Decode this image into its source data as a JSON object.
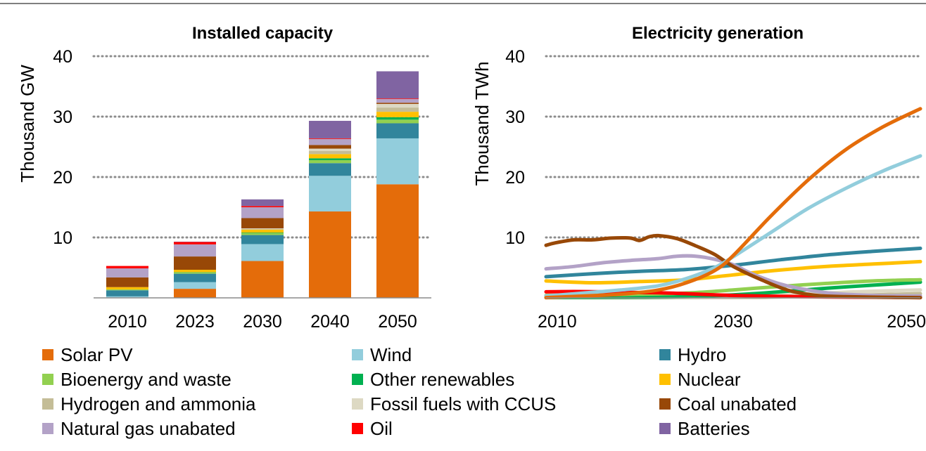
{
  "chart_data": [
    {
      "type": "bar",
      "stacked": true,
      "title": "Installed capacity",
      "ylabel": "Thousand GW",
      "xlabel": "",
      "ylim": [
        0,
        40
      ],
      "yticks": [
        10,
        20,
        30,
        40
      ],
      "grid": "horizontal dotted",
      "categories": [
        "2010",
        "2023",
        "2030",
        "2040",
        "2050"
      ],
      "series": [
        {
          "name": "Solar PV",
          "values": [
            0.05,
            1.5,
            6.1,
            14.3,
            18.8
          ]
        },
        {
          "name": "Wind",
          "values": [
            0.2,
            1.1,
            2.8,
            5.9,
            7.6
          ]
        },
        {
          "name": "Hydro",
          "values": [
            1.0,
            1.4,
            1.5,
            2.1,
            2.5
          ]
        },
        {
          "name": "Bioenergy and waste",
          "values": [
            0.1,
            0.2,
            0.3,
            0.5,
            0.6
          ]
        },
        {
          "name": "Other renewables",
          "values": [
            0.03,
            0.05,
            0.1,
            0.3,
            0.4
          ]
        },
        {
          "name": "Nuclear",
          "values": [
            0.4,
            0.4,
            0.5,
            0.7,
            0.9
          ]
        },
        {
          "name": "Hydrogen and ammonia",
          "values": [
            0.0,
            0.0,
            0.1,
            0.5,
            0.7
          ]
        },
        {
          "name": "Fossil fuels with CCUS",
          "values": [
            0.0,
            0.0,
            0.1,
            0.4,
            0.6
          ]
        },
        {
          "name": "Coal unabated",
          "values": [
            1.6,
            2.2,
            1.7,
            0.6,
            0.2
          ]
        },
        {
          "name": "Natural gas unabated",
          "values": [
            1.5,
            2.0,
            1.8,
            1.0,
            0.6
          ]
        },
        {
          "name": "Oil",
          "values": [
            0.4,
            0.4,
            0.2,
            0.1,
            0.1
          ]
        },
        {
          "name": "Batteries",
          "values": [
            0.0,
            0.05,
            1.1,
            2.9,
            4.5
          ]
        }
      ]
    },
    {
      "type": "line",
      "title": "Electricity generation",
      "ylabel": "Thousand TWh",
      "xlabel": "",
      "xlim": [
        2010,
        2050
      ],
      "xticks": [
        2010,
        2030,
        2050
      ],
      "ylim": [
        0,
        40
      ],
      "yticks": [
        10,
        20,
        30,
        40
      ],
      "grid": "horizontal dotted",
      "series": [
        {
          "name": "Solar PV",
          "x": [
            2010,
            2014,
            2018,
            2022,
            2025,
            2028,
            2030,
            2034,
            2038,
            2042,
            2046,
            2050
          ],
          "y": [
            0.05,
            0.3,
            0.6,
            1.3,
            2.5,
            4.5,
            7.0,
            13.5,
            19.5,
            24.5,
            28.3,
            31.3
          ]
        },
        {
          "name": "Wind",
          "x": [
            2010,
            2014,
            2018,
            2022,
            2025,
            2028,
            2030,
            2034,
            2038,
            2042,
            2046,
            2050
          ],
          "y": [
            0.3,
            0.8,
            1.3,
            2.0,
            3.2,
            5.0,
            6.8,
            10.8,
            14.8,
            18.1,
            21.0,
            23.5
          ]
        },
        {
          "name": "Hydro",
          "x": [
            2010,
            2015,
            2020,
            2025,
            2030,
            2035,
            2040,
            2045,
            2050
          ],
          "y": [
            3.5,
            4.0,
            4.4,
            4.7,
            5.4,
            6.3,
            7.1,
            7.7,
            8.2
          ]
        },
        {
          "name": "Bioenergy and waste",
          "x": [
            2010,
            2015,
            2020,
            2025,
            2030,
            2035,
            2040,
            2045,
            2050
          ],
          "y": [
            0.4,
            0.5,
            0.6,
            0.8,
            1.3,
            1.9,
            2.4,
            2.8,
            3.0
          ]
        },
        {
          "name": "Other renewables",
          "x": [
            2010,
            2015,
            2020,
            2025,
            2030,
            2035,
            2040,
            2045,
            2050
          ],
          "y": [
            0.07,
            0.09,
            0.12,
            0.2,
            0.5,
            1.0,
            1.6,
            2.1,
            2.6
          ]
        },
        {
          "name": "Nuclear",
          "x": [
            2010,
            2015,
            2020,
            2025,
            2030,
            2035,
            2040,
            2045,
            2050
          ],
          "y": [
            2.8,
            2.5,
            2.7,
            3.0,
            3.8,
            4.6,
            5.2,
            5.6,
            6.0
          ]
        },
        {
          "name": "Hydrogen and ammonia",
          "x": [
            2010,
            2030,
            2035,
            2040,
            2045,
            2050
          ],
          "y": [
            0.0,
            0.05,
            0.15,
            0.3,
            0.5,
            0.7
          ]
        },
        {
          "name": "Fossil fuels with CCUS",
          "x": [
            2010,
            2030,
            2035,
            2040,
            2045,
            2050
          ],
          "y": [
            0.0,
            0.1,
            0.4,
            0.8,
            1.1,
            1.3
          ]
        },
        {
          "name": "Coal unabated",
          "x": [
            2010,
            2011,
            2013,
            2015,
            2017,
            2019,
            2020,
            2021,
            2022,
            2024,
            2026,
            2028,
            2030,
            2033,
            2036,
            2039,
            2042,
            2046,
            2050
          ],
          "y": [
            8.7,
            9.1,
            9.6,
            9.6,
            9.9,
            9.9,
            9.5,
            10.1,
            10.3,
            9.8,
            8.6,
            7.2,
            5.2,
            3.0,
            1.2,
            0.4,
            0.2,
            0.1,
            0.05
          ]
        },
        {
          "name": "Natural gas unabated",
          "x": [
            2010,
            2013,
            2016,
            2019,
            2022,
            2024,
            2026,
            2028,
            2030,
            2032,
            2035,
            2038,
            2041,
            2045,
            2050
          ],
          "y": [
            4.8,
            5.2,
            5.8,
            6.2,
            6.5,
            6.9,
            6.9,
            6.4,
            5.5,
            4.0,
            2.3,
            1.3,
            0.7,
            0.4,
            0.3
          ]
        },
        {
          "name": "Oil",
          "x": [
            2010,
            2013,
            2016,
            2019,
            2022,
            2025,
            2028,
            2030,
            2035,
            2040,
            2045,
            2050
          ],
          "y": [
            1.0,
            1.05,
            1.0,
            0.9,
            0.85,
            0.7,
            0.5,
            0.4,
            0.25,
            0.15,
            0.1,
            0.05
          ]
        }
      ]
    }
  ],
  "legend": {
    "items": [
      {
        "label": "Solar PV",
        "color": "#E46C0A"
      },
      {
        "label": "Wind",
        "color": "#92CDDC"
      },
      {
        "label": "Hydro",
        "color": "#31859C"
      },
      {
        "label": "Bioenergy and waste",
        "color": "#92D050"
      },
      {
        "label": "Other renewables",
        "color": "#00B050"
      },
      {
        "label": "Nuclear",
        "color": "#FFC000"
      },
      {
        "label": "Hydrogen and ammonia",
        "color": "#C4BD97"
      },
      {
        "label": "Fossil fuels with CCUS",
        "color": "#DDD9C3"
      },
      {
        "label": "Coal unabated",
        "color": "#984807"
      },
      {
        "label": "Natural gas unabated",
        "color": "#B3A2C7"
      },
      {
        "label": "Oil",
        "color": "#FF0000"
      },
      {
        "label": "Batteries",
        "color": "#8064A2"
      }
    ]
  }
}
